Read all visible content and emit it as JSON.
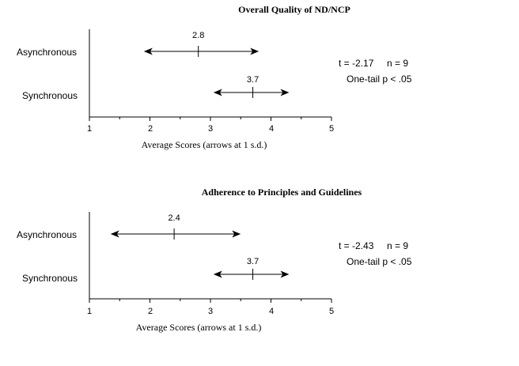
{
  "chart_data": [
    {
      "type": "interval",
      "title": "Overall Quality of ND/NCP",
      "xlabel": "Average Scores (arrows at 1 s.d.)",
      "ylabel": "",
      "xlim": [
        1,
        5
      ],
      "xticks": [
        "1",
        "2",
        "3",
        "4",
        "5"
      ],
      "categories": [
        "Asynchronous",
        "Synchronous"
      ],
      "series": [
        {
          "category": "Asynchronous",
          "mean": 2.8,
          "label": "2.8",
          "low": 1.9,
          "high": 3.8
        },
        {
          "category": "Synchronous",
          "mean": 3.7,
          "label": "3.7",
          "low": 3.05,
          "high": 4.3
        }
      ],
      "stats": {
        "t": "t = -2.17",
        "n": "n = 9",
        "p": "One-tail p < .05"
      }
    },
    {
      "type": "interval",
      "title": "Adherence to Principles and Guidelines",
      "xlabel": "Average Scores (arrows at 1 s.d.)",
      "ylabel": "",
      "xlim": [
        1,
        5
      ],
      "xticks": [
        "1",
        "2",
        "3",
        "4",
        "5"
      ],
      "categories": [
        "Asynchronous",
        "Synchronous"
      ],
      "series": [
        {
          "category": "Asynchronous",
          "mean": 2.4,
          "label": "2.4",
          "low": 1.35,
          "high": 3.5
        },
        {
          "category": "Synchronous",
          "mean": 3.7,
          "label": "3.7",
          "low": 3.05,
          "high": 4.3
        }
      ],
      "stats": {
        "t": "t = -2.43",
        "n": "n = 9",
        "p": "One-tail p < .05"
      }
    }
  ]
}
